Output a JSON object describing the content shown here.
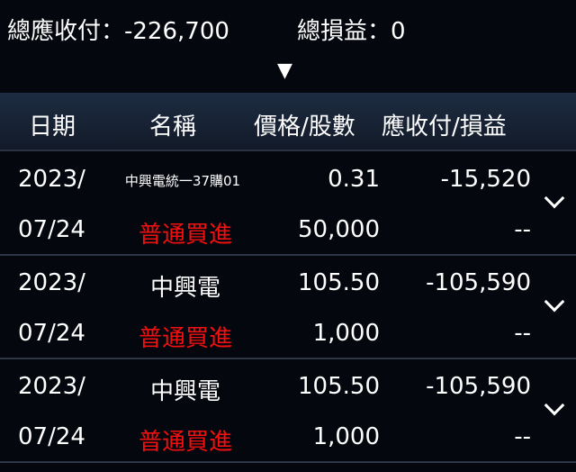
{
  "summary": {
    "total_payable": "總應收付：-226,700",
    "total_pnl": "總損益：0"
  },
  "expand_arrow": "▼",
  "headers": {
    "date": "日期",
    "name": "名稱",
    "price_qty": "價格/股數",
    "payable_pnl": "應收付/損益"
  },
  "rows": [
    {
      "date_y": "2023/",
      "date_md": "07/24",
      "name": "中興電統一37購01",
      "type": "普通買進",
      "price": "0.31",
      "qty": "50,000",
      "payable": "-15,520",
      "pnl": "--"
    },
    {
      "date_y": "2023/",
      "date_md": "07/24",
      "name": "中興電",
      "type": "普通買進",
      "price": "105.50",
      "qty": "1,000",
      "payable": "-105,590",
      "pnl": "--"
    },
    {
      "date_y": "2023/",
      "date_md": "07/24",
      "name": "中興電",
      "type": "普通買進",
      "price": "105.50",
      "qty": "1,000",
      "payable": "-105,590",
      "pnl": "--"
    }
  ],
  "colors": {
    "buy": "#f01010",
    "header": "#1d2c42",
    "background": "#05070e"
  }
}
